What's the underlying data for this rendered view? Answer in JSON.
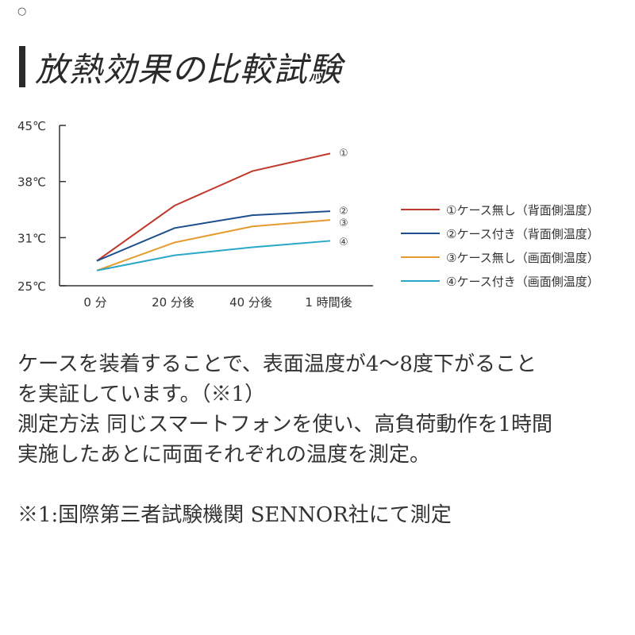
{
  "header": {
    "corner_mark": "○",
    "title": "放熱効果の比較試験"
  },
  "chart_data": {
    "type": "line",
    "categories": [
      "0 分",
      "20 分後",
      "40 分後",
      "1 時間後"
    ],
    "ylim": [
      25,
      45
    ],
    "y_ticks": [
      {
        "value": 25,
        "label": "25℃"
      },
      {
        "value": 31,
        "label": "31℃"
      },
      {
        "value": 38,
        "label": "38℃"
      },
      {
        "value": 45,
        "label": "45℃"
      }
    ],
    "series": [
      {
        "name": "①ケース無し（背面側温度）",
        "marker": "①",
        "color": "#c0392b",
        "values": [
          28.1,
          35.0,
          39.3,
          41.5
        ]
      },
      {
        "name": "②ケース付き（背面側温度）",
        "marker": "②",
        "color": "#1f4e8c",
        "values": [
          28.1,
          32.2,
          33.8,
          34.3
        ]
      },
      {
        "name": "③ケース無し（画面側温度）",
        "marker": "③",
        "color": "#e69b2e",
        "values": [
          26.9,
          30.4,
          32.4,
          33.2
        ]
      },
      {
        "name": "④ケース付き（画面側温度）",
        "marker": "④",
        "color": "#2aa7c9",
        "values": [
          26.9,
          28.8,
          29.8,
          30.6
        ]
      }
    ],
    "grid": false,
    "legend_position": "right"
  },
  "body": {
    "lines": [
      "ケースを装着することで、表面温度が4〜8度下がること",
      "を実証しています。（※1）",
      "測定方法 同じスマートフォンを使い、高負荷動作を1時間",
      "実施したあとに両面それぞれの温度を測定。",
      "",
      "※1:国際第三者試験機関 SENNOR社にて測定"
    ]
  }
}
